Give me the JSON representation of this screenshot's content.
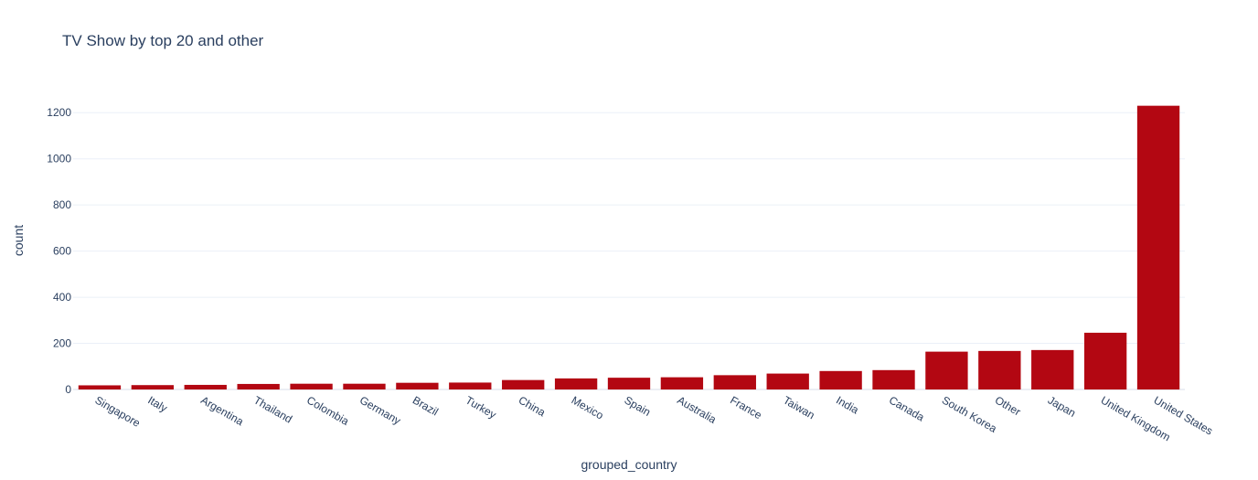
{
  "chart_data": {
    "type": "bar",
    "title": "TV Show by top 20 and other",
    "xlabel": "grouped_country",
    "ylabel": "count",
    "categories": [
      "Singapore",
      "Italy",
      "Argentina",
      "Thailand",
      "Colombia",
      "Germany",
      "Brazil",
      "Turkey",
      "China",
      "Mexico",
      "Spain",
      "Australia",
      "France",
      "Taiwan",
      "India",
      "Canada",
      "South Korea",
      "Other",
      "Japan",
      "United Kingdom",
      "United States"
    ],
    "values": [
      18,
      19,
      20,
      24,
      25,
      25,
      29,
      30,
      41,
      48,
      51,
      53,
      62,
      69,
      80,
      84,
      164,
      167,
      171,
      246,
      1230
    ],
    "ylim": [
      0,
      1300
    ],
    "yticks": [
      0,
      200,
      400,
      600,
      800,
      1000,
      1200
    ],
    "grid": true,
    "bar_color": "#b30712"
  }
}
